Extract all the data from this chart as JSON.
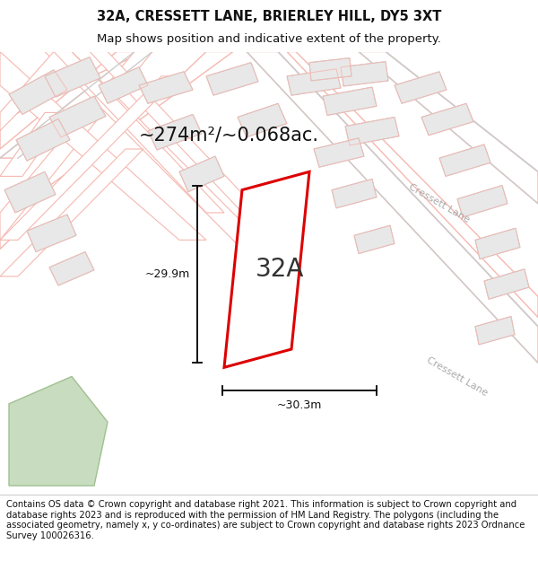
{
  "title_line1": "32A, CRESSETT LANE, BRIERLEY HILL, DY5 3XT",
  "title_line2": "Map shows position and indicative extent of the property.",
  "area_text": "~274m²/~0.068ac.",
  "label_32A": "32A",
  "dim_width": "~30.3m",
  "dim_height": "~29.9m",
  "footer": "Contains OS data © Crown copyright and database right 2021. This information is subject to Crown copyright and database rights 2023 and is reproduced with the permission of HM Land Registry. The polygons (including the associated geometry, namely x, y co-ordinates) are subject to Crown copyright and database rights 2023 Ordnance Survey 100026316.",
  "bg_color": "#ffffff",
  "map_bg": "#f8f8f8",
  "road_outline_color": "#f5b8b0",
  "road_fill_color": "#ffffff",
  "boundary_color": "#cccccc",
  "building_fill": "#e8e8e8",
  "building_edge": "#cccccc",
  "plot_outline_color": "#dd0000",
  "plot_fill_color": "#ffffff",
  "green_area_color": "#c8ddc0",
  "green_edge_color": "#a0c090",
  "cressett_lane_color": "#cccccc",
  "title_fontsize": 10.5,
  "subtitle_fontsize": 9.5,
  "footer_fontsize": 7.2,
  "area_fontsize": 15,
  "label_fontsize": 20,
  "dim_fontsize": 9
}
